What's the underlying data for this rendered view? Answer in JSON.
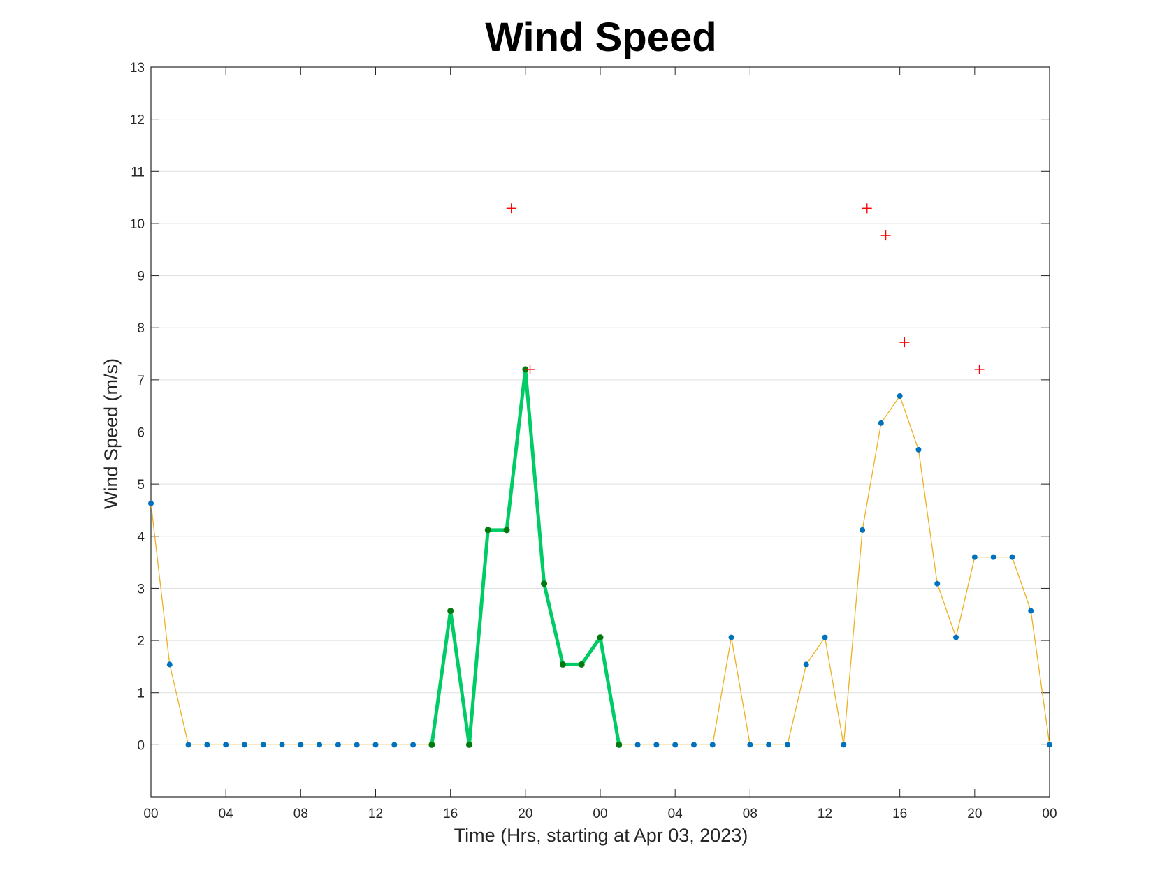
{
  "chart_data": {
    "type": "line",
    "title": "Wind Speed",
    "xlabel": "Time (Hrs, starting at Apr 03, 2023)",
    "ylabel": "Wind Speed (m/s)",
    "x_unit": "hours",
    "xlim": [
      0,
      48
    ],
    "ylim": [
      -1,
      13
    ],
    "x_ticks": [
      0,
      4,
      8,
      12,
      16,
      20,
      24,
      28,
      32,
      36,
      40,
      44,
      48
    ],
    "x_tick_labels": [
      "00",
      "04",
      "08",
      "12",
      "16",
      "20",
      "00",
      "04",
      "08",
      "12",
      "16",
      "20",
      "00"
    ],
    "y_ticks": [
      0,
      1,
      2,
      3,
      4,
      5,
      6,
      7,
      8,
      9,
      10,
      11,
      12,
      13
    ],
    "y_tick_labels": [
      "0",
      "1",
      "2",
      "3",
      "4",
      "5",
      "6",
      "7",
      "8",
      "9",
      "10",
      "11",
      "12",
      "13"
    ],
    "grid": "horizontal",
    "series": [
      {
        "style": "thin-line-with-dots",
        "line_color": "#EDB120",
        "marker_color": "#0072BD",
        "x": [
          0,
          1,
          2,
          3,
          4,
          5,
          6,
          7,
          8,
          9,
          10,
          11,
          12,
          13,
          14,
          15,
          16,
          17,
          18,
          19,
          20,
          21,
          22,
          23,
          24,
          25,
          26,
          27,
          28,
          29,
          30,
          31,
          32,
          33,
          34,
          35,
          36,
          37,
          38,
          39,
          40,
          41,
          42,
          43,
          44,
          45,
          46,
          47,
          48
        ],
        "values": [
          4.63,
          1.54,
          0,
          0,
          0,
          0,
          0,
          0,
          0,
          0,
          0,
          0,
          0,
          0,
          0,
          0,
          2.57,
          0,
          4.12,
          4.12,
          7.2,
          3.09,
          1.54,
          1.54,
          2.06,
          0,
          0,
          0,
          0,
          0,
          0,
          2.06,
          0,
          0,
          0,
          1.54,
          2.06,
          0,
          4.12,
          6.17,
          6.69,
          5.66,
          3.09,
          2.06,
          3.6,
          3.6,
          3.6,
          2.57,
          0
        ]
      },
      {
        "style": "thick-line-with-dots",
        "line_color": "#00CC66",
        "marker_color": "#007A0F",
        "x": [
          15,
          16,
          17,
          18,
          19,
          20,
          21,
          22,
          23,
          24,
          25
        ],
        "values": [
          0,
          2.57,
          0,
          4.12,
          4.12,
          7.2,
          3.09,
          1.54,
          1.54,
          2.06,
          0
        ]
      },
      {
        "style": "plus-markers",
        "marker_color": "#FF0000",
        "x": [
          19.25,
          20.25,
          38.25,
          39.25,
          40.25,
          44.25
        ],
        "values": [
          10.29,
          7.2,
          10.29,
          9.77,
          7.72,
          7.2
        ]
      }
    ]
  }
}
